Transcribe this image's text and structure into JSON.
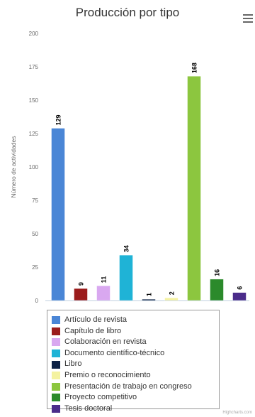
{
  "chart_data": {
    "type": "bar",
    "title": "Producción por tipo",
    "xlabel": "",
    "ylabel": "Número de actividades",
    "ylim": [
      0,
      200
    ],
    "yticks": [
      0,
      25,
      50,
      75,
      100,
      125,
      150,
      175,
      200
    ],
    "grid": false,
    "legend_position": "bottom",
    "series": [
      {
        "name": "Artículo de revista",
        "value": 129,
        "color": "#4a86d6"
      },
      {
        "name": "Capítulo de libro",
        "value": 9,
        "color": "#9b1c1c"
      },
      {
        "name": "Colaboración en revista",
        "value": 11,
        "color": "#d9a8f0"
      },
      {
        "name": "Documento científico-técnico",
        "value": 34,
        "color": "#1fb3d6"
      },
      {
        "name": "Libro",
        "value": 1,
        "color": "#0d2245"
      },
      {
        "name": "Premio o reconocimiento",
        "value": 2,
        "color": "#f4f2a0"
      },
      {
        "name": "Presentación de trabajo en congreso",
        "value": 168,
        "color": "#8cc63f"
      },
      {
        "name": "Proyecto competitivo",
        "value": 16,
        "color": "#2b8a2b"
      },
      {
        "name": "Tesis doctoral",
        "value": 6,
        "color": "#4b2c8a"
      }
    ]
  },
  "menu": {
    "icon": "hamburger-menu-icon"
  },
  "credits": "Highcharts.com"
}
